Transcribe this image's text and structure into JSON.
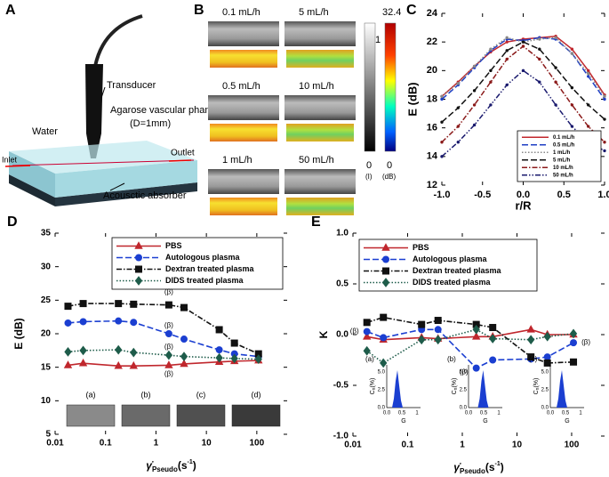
{
  "diagram": {
    "label": "A",
    "transducer": "Transducer",
    "phantom": "Agarose vascular phantom",
    "diameter": "(D=1mm)",
    "water": "Water",
    "inlet": "Inlet",
    "outlet": "Outlet",
    "absorber": "Acousctic absorber"
  },
  "images": {
    "label": "B",
    "flow_rates": [
      "0.1 mL/h",
      "5 mL/h",
      "0.5 mL/h",
      "10 mL/h",
      "1 mL/h",
      "50 mL/h"
    ],
    "gray_scale": {
      "max": 1,
      "min": 0,
      "unit": "(I)"
    },
    "color_scale": {
      "max": 32.4,
      "min": 0,
      "unit": "(dB)"
    }
  },
  "chart_data": [
    {
      "type": "line",
      "label": "C",
      "x_label": "r/R",
      "y_label": "E (dB)",
      "x": [
        -1,
        -0.8,
        -0.6,
        -0.4,
        -0.2,
        0,
        0.2,
        0.4,
        0.6,
        0.8,
        1
      ],
      "xlim": [
        -1,
        1
      ],
      "xticks": [
        {
          "value": -1,
          "label": "-1.0"
        },
        {
          "value": -0.5,
          "label": "-0.5"
        },
        {
          "value": 0,
          "label": "0.0"
        },
        {
          "value": 0.5,
          "label": "0.5"
        },
        {
          "value": 1,
          "label": "1.0"
        }
      ],
      "ylim": [
        12,
        24
      ],
      "yticks": [
        12,
        14,
        16,
        18,
        20,
        22,
        24
      ],
      "legend": "lower right",
      "series": [
        {
          "name": "0.1 mL/h",
          "color": "#c1272d",
          "dash": "solid",
          "marker": "dot",
          "values": [
            18.2,
            19.2,
            20.3,
            21.3,
            22.0,
            22.2,
            22.3,
            22.4,
            21.5,
            20.0,
            18.3
          ]
        },
        {
          "name": "0.5 mL/h",
          "color": "#1f3fc4",
          "dash": "dashed",
          "marker": "dot",
          "values": [
            18.0,
            19.0,
            20.2,
            21.4,
            22.2,
            22.1,
            22.3,
            22.2,
            21.2,
            19.6,
            18.0
          ]
        },
        {
          "name": "1 mL/h",
          "color": "#888888",
          "dash": "dotted",
          "marker": "dot",
          "values": [
            18.2,
            19.1,
            20.3,
            21.5,
            22.3,
            22.0,
            22.2,
            22.3,
            21.2,
            19.8,
            18.2
          ]
        },
        {
          "name": "5 mL/h",
          "color": "#111111",
          "dash": "dashed",
          "marker": "dot",
          "values": [
            16.4,
            17.4,
            18.6,
            20.0,
            21.4,
            22.0,
            21.5,
            20.2,
            18.8,
            17.6,
            16.6
          ]
        },
        {
          "name": "10 mL/h",
          "color": "#8b1a1a",
          "dash": "dash-dot",
          "marker": "dot",
          "values": [
            15.0,
            16.1,
            17.6,
            19.2,
            20.8,
            21.7,
            20.8,
            19.2,
            17.6,
            16.1,
            15.0
          ]
        },
        {
          "name": "50 mL/h",
          "color": "#1a1a6e",
          "dash": "dash-dot-dot",
          "marker": "dot",
          "values": [
            14.0,
            15.0,
            16.2,
            17.6,
            19.0,
            20.0,
            19.2,
            17.6,
            16.1,
            15.0,
            14.4
          ]
        }
      ]
    },
    {
      "type": "line",
      "label": "D",
      "log_x": true,
      "y_label": "E (dB)",
      "x_label": {
        "symbol": "γ̇",
        "subscript": "Pseudo",
        "unit": "(s",
        "exponent": "-1",
        "close": ")"
      },
      "x": [
        0.018,
        0.036,
        0.18,
        0.36,
        1.8,
        3.6,
        18,
        36,
        108
      ],
      "xlim": [
        0.01,
        400
      ],
      "xticks": [
        0.01,
        0.1,
        1,
        10,
        100
      ],
      "ylim": [
        5,
        35
      ],
      "yticks": [
        5,
        10,
        15,
        20,
        25,
        30,
        35
      ],
      "legend": "upper right",
      "annotations": [
        "(β)",
        "(β)",
        "(β)",
        "(β)"
      ],
      "inset_labels": [
        "(a)",
        "(b)",
        "(c)",
        "(d)"
      ],
      "series": [
        {
          "name": "PBS",
          "color": "#c0272d",
          "dash": "solid",
          "marker": "triangle",
          "values": [
            15.3,
            15.6,
            15.2,
            15.2,
            15.3,
            15.5,
            15.8,
            15.9,
            16.0
          ]
        },
        {
          "name": "Autologous plasma",
          "color": "#1b3fd1",
          "dash": "dashed",
          "marker": "circle",
          "values": [
            21.6,
            21.8,
            21.9,
            21.7,
            20.0,
            19.2,
            17.6,
            17.0,
            16.6
          ]
        },
        {
          "name": "Dextran treated plasma",
          "color": "#111111",
          "dash": "dash-dot",
          "marker": "square",
          "values": [
            24.1,
            24.5,
            24.5,
            24.4,
            24.3,
            23.9,
            20.6,
            18.6,
            17.0
          ]
        },
        {
          "name": "DIDS treated plasma",
          "color": "#1e5c4a",
          "dash": "dotted",
          "marker": "diamond",
          "values": [
            17.3,
            17.5,
            17.6,
            17.2,
            16.8,
            16.6,
            16.4,
            16.3,
            16.2
          ]
        }
      ]
    },
    {
      "type": "line",
      "label": "E",
      "log_x": true,
      "y_label": "K",
      "x_label": {
        "symbol": "γ̇",
        "subscript": "Pseudo",
        "unit": "(s",
        "exponent": "-1",
        "close": ")"
      },
      "x": [
        0.018,
        0.036,
        0.18,
        0.36,
        1.8,
        3.6,
        18,
        36,
        108
      ],
      "xlim": [
        0.01,
        400
      ],
      "xticks": [
        0.01,
        0.1,
        1,
        10,
        100
      ],
      "ylim": [
        -1,
        1
      ],
      "yticks": [
        {
          "value": -1,
          "label": "-1.0"
        },
        {
          "value": -0.5,
          "label": "-0.5"
        },
        {
          "value": 0,
          "label": "0.0"
        },
        {
          "value": 0.5,
          "label": "0.5"
        },
        {
          "value": 1,
          "label": "1.0"
        }
      ],
      "legend": "upper left",
      "annotations": [
        "(β)",
        "(β)",
        "(β)"
      ],
      "inset": {
        "labels": [
          "(a)",
          "(b)",
          "(c)"
        ],
        "y_label": "C",
        "y_label_sub": "n",
        "y_unit": "(%)",
        "yticks": [
          "0.0",
          "2.5",
          "5.0"
        ],
        "xticks": [
          "0.0",
          "0.5",
          "1"
        ],
        "x_label": "G"
      },
      "series": [
        {
          "name": "PBS",
          "color": "#c0272d",
          "dash": "solid",
          "marker": "triangle",
          "values": [
            -0.02,
            -0.05,
            -0.03,
            -0.04,
            -0.02,
            -0.02,
            0.05,
            0.0,
            0.0
          ]
        },
        {
          "name": "Autologous plasma",
          "color": "#1b3fd1",
          "dash": "dashed",
          "marker": "circle",
          "values": [
            0.03,
            -0.03,
            0.05,
            0.05,
            -0.33,
            -0.25,
            -0.24,
            -0.22,
            -0.08
          ]
        },
        {
          "name": "Dextran treated plasma",
          "color": "#111111",
          "dash": "dash-dot",
          "marker": "square",
          "values": [
            0.12,
            0.17,
            0.1,
            0.14,
            0.1,
            0.07,
            -0.22,
            -0.28,
            -0.27
          ]
        },
        {
          "name": "DIDS treated plasma",
          "color": "#1e5c4a",
          "dash": "dotted",
          "marker": "diamond",
          "values": [
            -0.16,
            -0.28,
            -0.05,
            -0.05,
            0.05,
            -0.04,
            -0.05,
            -0.02,
            0.01
          ]
        }
      ]
    }
  ]
}
